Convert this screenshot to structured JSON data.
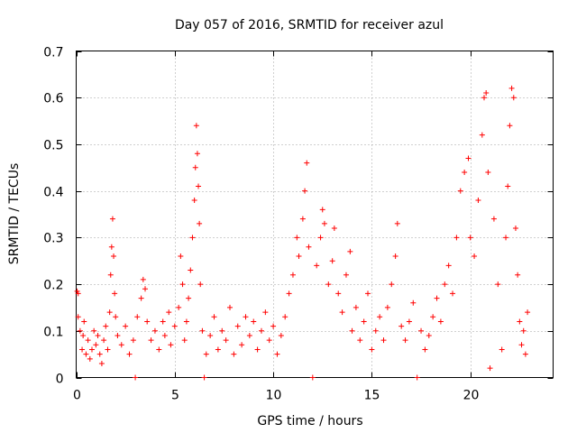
{
  "chart_data": {
    "type": "scatter",
    "title": "Day 057 of 2016, SRMTID for receiver azul",
    "xlabel": "GPS time / hours",
    "ylabel": "SRMTID / TECUs",
    "xlim": [
      0,
      24.2
    ],
    "ylim": [
      0,
      0.7
    ],
    "xticks": [
      0,
      5,
      10,
      15,
      20
    ],
    "yticks": [
      0,
      0.1,
      0.2,
      0.3,
      0.4,
      0.5,
      0.6,
      0.7
    ],
    "xtick_labels": [
      "0",
      "5",
      "10",
      "15",
      "20"
    ],
    "ytick_labels": [
      "0",
      "0.1",
      "0.2",
      "0.3",
      "0.4",
      "0.5",
      "0.6",
      "0.7"
    ],
    "grid": true,
    "marker": "+",
    "series": [
      {
        "name": "SRMTID",
        "color": "#ff0000",
        "points": [
          [
            0.05,
            0.185
          ],
          [
            0.1,
            0.18
          ],
          [
            0.1,
            0.13
          ],
          [
            0.2,
            0.1
          ],
          [
            0.3,
            0.06
          ],
          [
            0.35,
            0.09
          ],
          [
            0.4,
            0.12
          ],
          [
            0.5,
            0.05
          ],
          [
            0.6,
            0.08
          ],
          [
            0.7,
            0.04
          ],
          [
            0.8,
            0.06
          ],
          [
            0.9,
            0.1
          ],
          [
            1.0,
            0.07
          ],
          [
            1.1,
            0.09
          ],
          [
            1.2,
            0.05
          ],
          [
            1.3,
            0.03
          ],
          [
            1.4,
            0.08
          ],
          [
            1.5,
            0.11
          ],
          [
            1.6,
            0.06
          ],
          [
            1.7,
            0.14
          ],
          [
            1.75,
            0.22
          ],
          [
            1.8,
            0.28
          ],
          [
            1.85,
            0.34
          ],
          [
            1.9,
            0.26
          ],
          [
            1.95,
            0.18
          ],
          [
            2.0,
            0.13
          ],
          [
            2.1,
            0.09
          ],
          [
            2.3,
            0.07
          ],
          [
            2.5,
            0.11
          ],
          [
            2.7,
            0.05
          ],
          [
            2.9,
            0.08
          ],
          [
            3.0,
            0.0
          ],
          [
            3.1,
            0.13
          ],
          [
            3.3,
            0.17
          ],
          [
            3.4,
            0.21
          ],
          [
            3.5,
            0.19
          ],
          [
            3.6,
            0.12
          ],
          [
            3.8,
            0.08
          ],
          [
            4.0,
            0.1
          ],
          [
            4.2,
            0.06
          ],
          [
            4.4,
            0.12
          ],
          [
            4.5,
            0.09
          ],
          [
            4.7,
            0.14
          ],
          [
            4.8,
            0.07
          ],
          [
            5.0,
            0.11
          ],
          [
            5.2,
            0.15
          ],
          [
            5.3,
            0.26
          ],
          [
            5.4,
            0.2
          ],
          [
            5.5,
            0.08
          ],
          [
            5.6,
            0.12
          ],
          [
            5.7,
            0.17
          ],
          [
            5.8,
            0.23
          ],
          [
            5.9,
            0.3
          ],
          [
            6.0,
            0.38
          ],
          [
            6.05,
            0.45
          ],
          [
            6.1,
            0.54
          ],
          [
            6.15,
            0.48
          ],
          [
            6.2,
            0.41
          ],
          [
            6.25,
            0.33
          ],
          [
            6.3,
            0.2
          ],
          [
            6.4,
            0.1
          ],
          [
            6.5,
            0.0
          ],
          [
            6.6,
            0.05
          ],
          [
            6.8,
            0.09
          ],
          [
            7.0,
            0.13
          ],
          [
            7.2,
            0.06
          ],
          [
            7.4,
            0.1
          ],
          [
            7.6,
            0.08
          ],
          [
            7.8,
            0.15
          ],
          [
            8.0,
            0.05
          ],
          [
            8.2,
            0.11
          ],
          [
            8.4,
            0.07
          ],
          [
            8.6,
            0.13
          ],
          [
            8.8,
            0.09
          ],
          [
            9.0,
            0.12
          ],
          [
            9.2,
            0.06
          ],
          [
            9.4,
            0.1
          ],
          [
            9.6,
            0.14
          ],
          [
            9.8,
            0.08
          ],
          [
            10.0,
            0.11
          ],
          [
            10.2,
            0.05
          ],
          [
            10.4,
            0.09
          ],
          [
            10.6,
            0.13
          ],
          [
            10.8,
            0.18
          ],
          [
            11.0,
            0.22
          ],
          [
            11.2,
            0.3
          ],
          [
            11.3,
            0.26
          ],
          [
            11.5,
            0.34
          ],
          [
            11.6,
            0.4
          ],
          [
            11.7,
            0.46
          ],
          [
            11.8,
            0.28
          ],
          [
            12.0,
            0.0
          ],
          [
            12.2,
            0.24
          ],
          [
            12.4,
            0.3
          ],
          [
            12.5,
            0.36
          ],
          [
            12.6,
            0.33
          ],
          [
            12.8,
            0.2
          ],
          [
            13.0,
            0.25
          ],
          [
            13.1,
            0.32
          ],
          [
            13.3,
            0.18
          ],
          [
            13.5,
            0.14
          ],
          [
            13.7,
            0.22
          ],
          [
            13.9,
            0.27
          ],
          [
            14.0,
            0.1
          ],
          [
            14.2,
            0.15
          ],
          [
            14.4,
            0.08
          ],
          [
            14.6,
            0.12
          ],
          [
            14.8,
            0.18
          ],
          [
            15.0,
            0.06
          ],
          [
            15.2,
            0.1
          ],
          [
            15.4,
            0.13
          ],
          [
            15.6,
            0.08
          ],
          [
            15.8,
            0.15
          ],
          [
            16.0,
            0.2
          ],
          [
            16.2,
            0.26
          ],
          [
            16.3,
            0.33
          ],
          [
            16.5,
            0.11
          ],
          [
            16.7,
            0.08
          ],
          [
            16.9,
            0.12
          ],
          [
            17.1,
            0.16
          ],
          [
            17.3,
            0.0
          ],
          [
            17.5,
            0.1
          ],
          [
            17.7,
            0.06
          ],
          [
            17.9,
            0.09
          ],
          [
            18.1,
            0.13
          ],
          [
            18.3,
            0.17
          ],
          [
            18.5,
            0.12
          ],
          [
            18.7,
            0.2
          ],
          [
            18.9,
            0.24
          ],
          [
            19.1,
            0.18
          ],
          [
            19.3,
            0.3
          ],
          [
            19.5,
            0.4
          ],
          [
            19.7,
            0.44
          ],
          [
            19.9,
            0.47
          ],
          [
            20.0,
            0.3
          ],
          [
            20.2,
            0.26
          ],
          [
            20.4,
            0.38
          ],
          [
            20.6,
            0.52
          ],
          [
            20.7,
            0.6
          ],
          [
            20.8,
            0.61
          ],
          [
            20.9,
            0.44
          ],
          [
            21.0,
            0.02
          ],
          [
            21.2,
            0.34
          ],
          [
            21.4,
            0.2
          ],
          [
            21.6,
            0.06
          ],
          [
            21.8,
            0.3
          ],
          [
            21.9,
            0.41
          ],
          [
            22.0,
            0.54
          ],
          [
            22.1,
            0.62
          ],
          [
            22.2,
            0.6
          ],
          [
            22.3,
            0.32
          ],
          [
            22.4,
            0.22
          ],
          [
            22.5,
            0.12
          ],
          [
            22.6,
            0.07
          ],
          [
            22.7,
            0.1
          ],
          [
            22.8,
            0.05
          ],
          [
            22.9,
            0.14
          ]
        ]
      }
    ]
  }
}
